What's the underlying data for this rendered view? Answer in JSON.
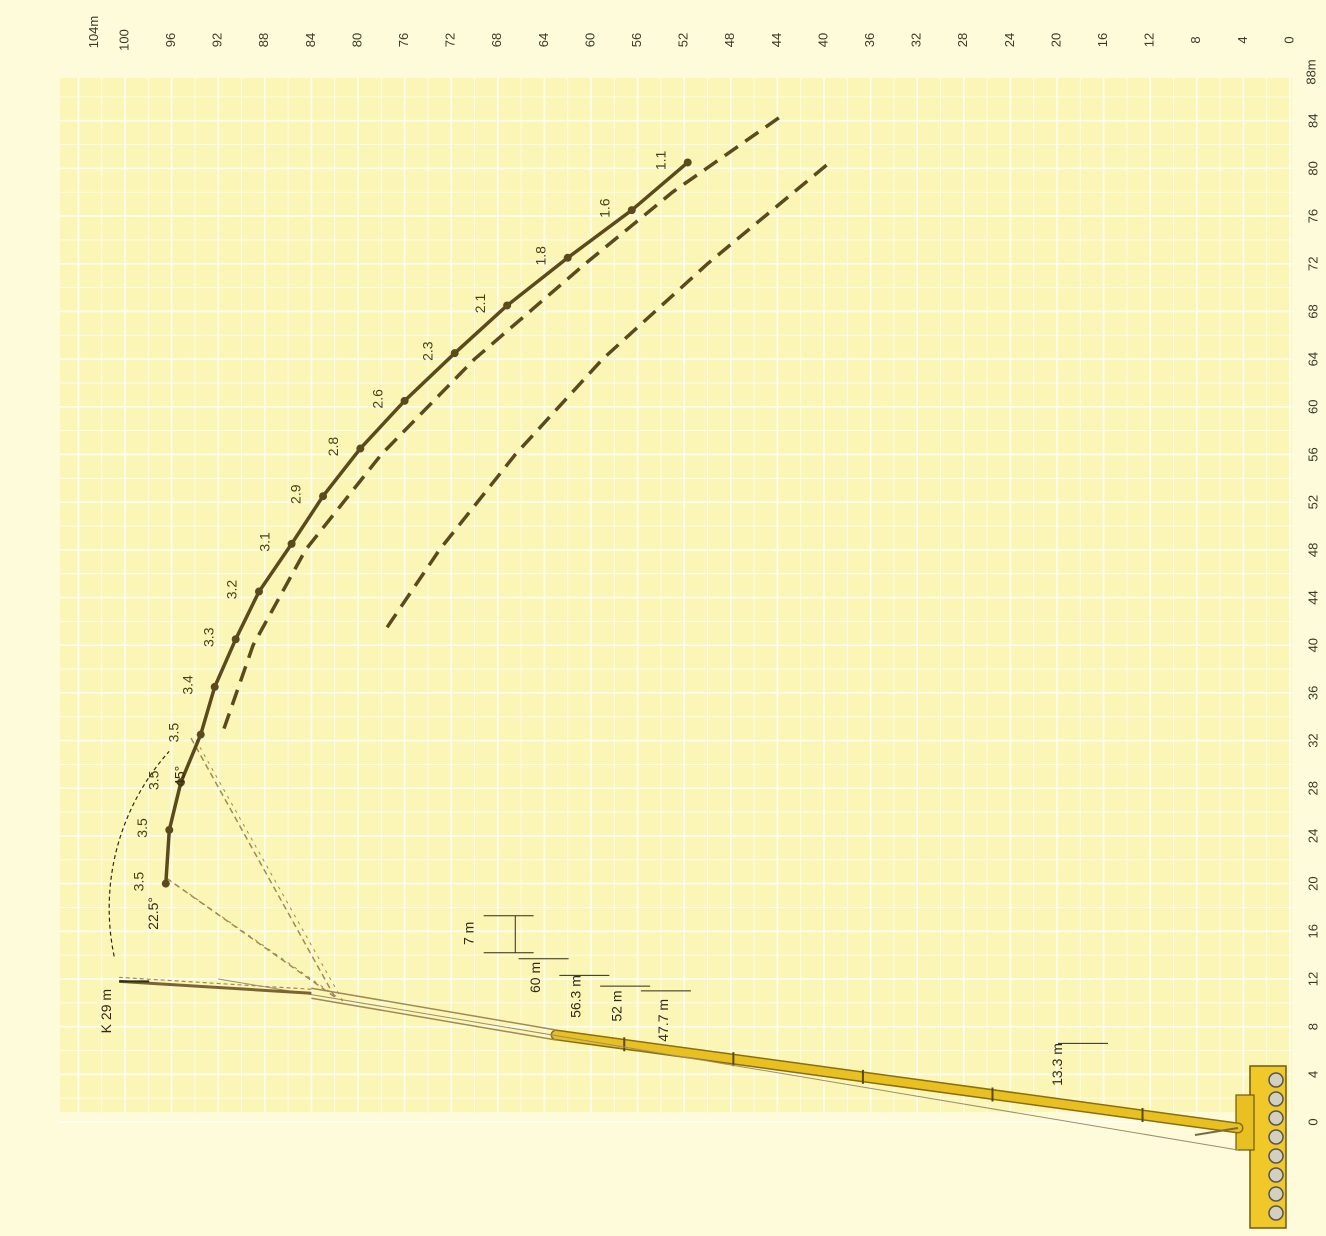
{
  "chart_data": {
    "type": "line",
    "title": "",
    "orientation": "rotated-90-clockwise",
    "radius_axis": {
      "ticks": [
        "0",
        "4",
        "8",
        "12",
        "16",
        "20",
        "24",
        "28",
        "32",
        "36",
        "40",
        "44",
        "48",
        "52",
        "56",
        "60",
        "64",
        "68",
        "72",
        "76",
        "80",
        "84"
      ],
      "end_label": "88m",
      "range": [
        0,
        88
      ]
    },
    "height_axis": {
      "ticks": [
        "0",
        "4",
        "8",
        "12",
        "16",
        "20",
        "24",
        "28",
        "32",
        "36",
        "40",
        "44",
        "48",
        "52",
        "56",
        "60",
        "64",
        "68",
        "72",
        "76",
        "80",
        "84",
        "88",
        "92",
        "96",
        "100"
      ],
      "end_label": "104m",
      "range": [
        0,
        104
      ]
    },
    "grid": true,
    "series": [
      {
        "style": "solid",
        "points": [
          {
            "x": 20,
            "y": 96.5,
            "label": "3.5"
          },
          {
            "x": 24.5,
            "y": 96.2,
            "label": "3.5"
          },
          {
            "x": 28.5,
            "y": 95.2,
            "label": "3.5"
          },
          {
            "x": 32.5,
            "y": 93.5,
            "label": "3.5"
          },
          {
            "x": 36.5,
            "y": 92.3,
            "label": "3.4"
          },
          {
            "x": 40.5,
            "y": 90.5,
            "label": "3.3"
          },
          {
            "x": 44.5,
            "y": 88.5,
            "label": "3.2"
          },
          {
            "x": 48.5,
            "y": 85.7,
            "label": "3.1"
          },
          {
            "x": 52.5,
            "y": 83.0,
            "label": "2.9"
          },
          {
            "x": 56.5,
            "y": 79.8,
            "label": "2.8"
          },
          {
            "x": 60.5,
            "y": 76.0,
            "label": "2.6"
          },
          {
            "x": 64.5,
            "y": 71.7,
            "label": "2.3"
          },
          {
            "x": 68.5,
            "y": 67.2,
            "label": "2.1"
          },
          {
            "x": 72.5,
            "y": 62.0,
            "label": "1.8"
          },
          {
            "x": 76.5,
            "y": 56.5,
            "label": "1.6"
          },
          {
            "x": 80.5,
            "y": 51.7,
            "label": "1.1"
          }
        ]
      },
      {
        "style": "dashed",
        "points": [
          {
            "x": 33,
            "y": 91.5
          },
          {
            "x": 40,
            "y": 89.0
          },
          {
            "x": 48,
            "y": 84.5
          },
          {
            "x": 56,
            "y": 78.0
          },
          {
            "x": 64,
            "y": 70.0
          },
          {
            "x": 72,
            "y": 60.5
          },
          {
            "x": 78,
            "y": 53.0
          },
          {
            "x": 84.5,
            "y": 43.5
          }
        ]
      },
      {
        "style": "dashed",
        "points": [
          {
            "x": 41.5,
            "y": 77.5
          },
          {
            "x": 48,
            "y": 73.0
          },
          {
            "x": 56,
            "y": 66.5
          },
          {
            "x": 64,
            "y": 59.0
          },
          {
            "x": 72,
            "y": 50.0
          },
          {
            "x": 80.5,
            "y": 39.5
          }
        ]
      }
    ],
    "annotations": {
      "angles": [
        "22.5°",
        "45°"
      ],
      "boom_lengths": [
        "60 m",
        "56.3 m",
        "52 m",
        "47.7 m",
        "13.3 m"
      ],
      "fly_jib_offset": "7 m",
      "jib_label": "K 29 m"
    }
  },
  "colors": {
    "background": "#fdfbd9",
    "grid": "#f3eea4",
    "curve": "#5a4a1c",
    "boom": "#e8c021",
    "boom_edge": "#8b6d12",
    "lattice": "#a08a55"
  }
}
